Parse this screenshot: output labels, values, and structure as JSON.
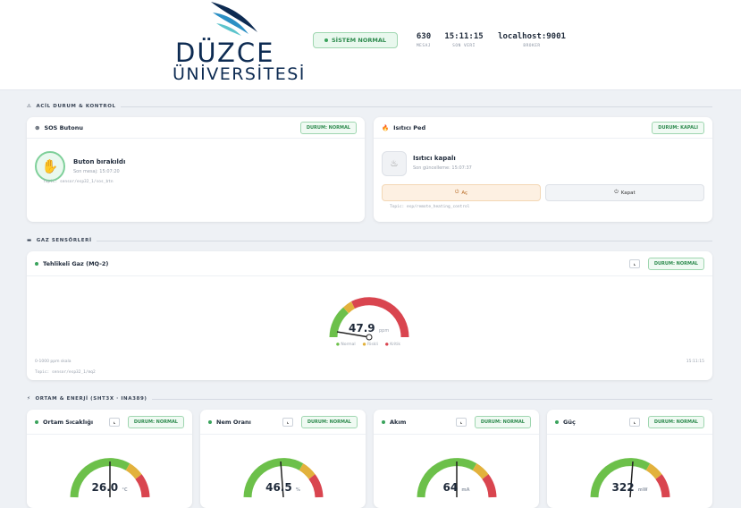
{
  "header": {
    "logo": {
      "line1": "DÜZCE",
      "line2": "ÜNİVERSİTESİ"
    },
    "status": "SİSTEM NORMAL",
    "stats": [
      {
        "value": "630",
        "label": "MESAJ"
      },
      {
        "value": "15:11:15",
        "label": "SON VERİ"
      },
      {
        "value": "localhost:9001",
        "label": "BROKER"
      }
    ]
  },
  "emergency": {
    "title": "ACİL DURUM & KONTROL",
    "sos": {
      "title": "SOS Butonu",
      "badge": "DURUM: NORMAL",
      "state": "Buton bırakıldı",
      "time": "Son mesaj: 15:07:20",
      "topic": "Topic: sensor/esp32_1/sos_btn"
    },
    "heater": {
      "title": "Isıtıcı Ped",
      "badge": "DURUM: KAPALI",
      "state": "Isıtıcı kapalı",
      "time": "Son güncelleme: 15:07:37",
      "on": "Aç",
      "off": "Kapat",
      "topic": "Topic: esp/remote_heating_control"
    }
  },
  "gas": {
    "title": "GAZ SENSÖRLERİ",
    "card": {
      "title": "Tehlikeli Gaz (MQ-2)",
      "badge": "DURUM: NORMAL",
      "value": "47.9",
      "unit": "ppm",
      "legend": [
        "Normal",
        "Riskli",
        "Kritik"
      ],
      "scale": "0-1000 ppm skala",
      "time": "15:11:15",
      "topic": "Topic: sensor/esp32_1/mq2"
    }
  },
  "env": {
    "title": "ORTAM & ENERJİ (SHT3X · INA389)",
    "cards": [
      {
        "title": "Ortam Sıcaklığı",
        "badge": "DURUM: NORMAL",
        "value": "26.0",
        "unit": "°C"
      },
      {
        "title": "Nem Oranı",
        "badge": "DURUM: NORMAL",
        "value": "46.5",
        "unit": "%"
      },
      {
        "title": "Akım",
        "badge": "DURUM: NORMAL",
        "value": "64",
        "unit": "mA"
      },
      {
        "title": "Güç",
        "badge": "DURUM: NORMAL",
        "value": "322",
        "unit": "mW"
      }
    ]
  }
}
